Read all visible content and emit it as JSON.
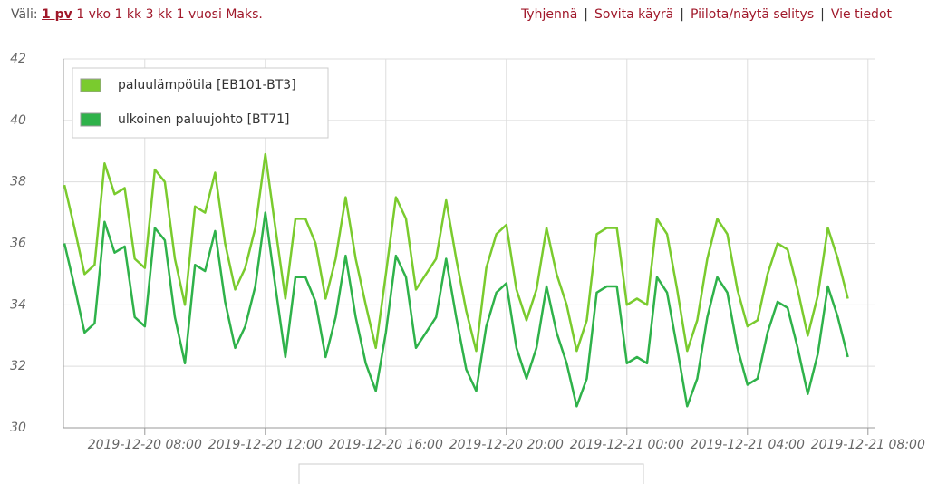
{
  "toolbar": {
    "label": "Väli:",
    "ranges": [
      "1 pv",
      "1 vko",
      "1 kk",
      "3 kk",
      "1 vuosi",
      "Maks."
    ],
    "actions": [
      "Tyhjennä",
      "Sovita käyrä",
      "Piilota/näytä selitys",
      "Vie tiedot"
    ],
    "separator": "|"
  },
  "chart_data": {
    "type": "line",
    "grid": true,
    "legend": "top-left",
    "xlim": [
      "2019-12-20 05:18",
      "2019-12-21 08:13"
    ],
    "xticks": [
      "2019-12-20 08:00",
      "2019-12-20 12:00",
      "2019-12-20 16:00",
      "2019-12-20 20:00",
      "2019-12-21 00:00",
      "2019-12-21 04:00",
      "2019-12-21 08:00"
    ],
    "ylim": [
      30,
      42
    ],
    "yticks": [
      30,
      32,
      34,
      36,
      38,
      40,
      42
    ],
    "x": [
      "2019-12-20 05:20",
      "2019-12-20 05:40",
      "2019-12-20 06:00",
      "2019-12-20 06:20",
      "2019-12-20 06:40",
      "2019-12-20 07:00",
      "2019-12-20 07:20",
      "2019-12-20 07:40",
      "2019-12-20 08:00",
      "2019-12-20 08:20",
      "2019-12-20 08:40",
      "2019-12-20 09:00",
      "2019-12-20 09:20",
      "2019-12-20 09:40",
      "2019-12-20 10:00",
      "2019-12-20 10:20",
      "2019-12-20 10:40",
      "2019-12-20 11:00",
      "2019-12-20 11:20",
      "2019-12-20 11:40",
      "2019-12-20 12:00",
      "2019-12-20 12:20",
      "2019-12-20 12:40",
      "2019-12-20 13:00",
      "2019-12-20 13:20",
      "2019-12-20 13:40",
      "2019-12-20 14:00",
      "2019-12-20 14:20",
      "2019-12-20 14:40",
      "2019-12-20 15:00",
      "2019-12-20 15:20",
      "2019-12-20 15:40",
      "2019-12-20 16:00",
      "2019-12-20 16:20",
      "2019-12-20 16:40",
      "2019-12-20 17:00",
      "2019-12-20 17:20",
      "2019-12-20 17:40",
      "2019-12-20 18:00",
      "2019-12-20 18:20",
      "2019-12-20 18:40",
      "2019-12-20 19:00",
      "2019-12-20 19:20",
      "2019-12-20 19:40",
      "2019-12-20 20:00",
      "2019-12-20 20:20",
      "2019-12-20 20:40",
      "2019-12-20 21:00",
      "2019-12-20 21:20",
      "2019-12-20 21:40",
      "2019-12-20 22:00",
      "2019-12-20 22:20",
      "2019-12-20 22:40",
      "2019-12-20 23:00",
      "2019-12-20 23:20",
      "2019-12-20 23:40",
      "2019-12-21 00:00",
      "2019-12-21 00:20",
      "2019-12-21 00:40",
      "2019-12-21 01:00",
      "2019-12-21 01:20",
      "2019-12-21 01:40",
      "2019-12-21 02:00",
      "2019-12-21 02:20",
      "2019-12-21 02:40",
      "2019-12-21 03:00",
      "2019-12-21 03:20",
      "2019-12-21 03:40",
      "2019-12-21 04:00",
      "2019-12-21 04:20",
      "2019-12-21 04:40",
      "2019-12-21 05:00",
      "2019-12-21 05:20",
      "2019-12-21 05:40",
      "2019-12-21 06:00",
      "2019-12-21 06:20",
      "2019-12-21 06:40",
      "2019-12-21 07:00",
      "2019-12-21 07:20"
    ],
    "series": [
      {
        "name": "paluulämpötila [EB101-BT3]",
        "color": "#7acb2e",
        "values": [
          37.9,
          36.5,
          35.0,
          35.3,
          38.6,
          37.6,
          37.8,
          35.5,
          35.2,
          38.4,
          38.0,
          35.5,
          34.0,
          37.2,
          37.0,
          38.3,
          36.0,
          34.5,
          35.2,
          36.5,
          38.9,
          36.5,
          34.2,
          36.8,
          36.8,
          36.0,
          34.2,
          35.5,
          37.5,
          35.5,
          34.0,
          32.6,
          35.0,
          37.5,
          36.8,
          34.5,
          35.0,
          35.5,
          37.4,
          35.5,
          33.8,
          32.5,
          35.2,
          36.3,
          36.6,
          34.5,
          33.5,
          34.5,
          36.5,
          35.0,
          34.0,
          32.5,
          33.5,
          36.3,
          36.5,
          36.5,
          34.0,
          34.2,
          34.0,
          36.8,
          36.3,
          34.5,
          32.5,
          33.5,
          35.5,
          36.8,
          36.3,
          34.5,
          33.3,
          33.5,
          35.0,
          36.0,
          35.8,
          34.5,
          33.0,
          34.3,
          36.5,
          35.5,
          34.2
        ]
      },
      {
        "name": "ulkoinen paluujohto [BT71]",
        "color": "#2fb24a",
        "values": [
          36.0,
          34.6,
          33.1,
          33.4,
          36.7,
          35.7,
          35.9,
          33.6,
          33.3,
          36.5,
          36.1,
          33.6,
          32.1,
          35.3,
          35.1,
          36.4,
          34.1,
          32.6,
          33.3,
          34.6,
          37.0,
          34.6,
          32.3,
          34.9,
          34.9,
          34.1,
          32.3,
          33.6,
          35.6,
          33.6,
          32.1,
          31.2,
          33.1,
          35.6,
          34.9,
          32.6,
          33.1,
          33.6,
          35.5,
          33.6,
          31.9,
          31.2,
          33.3,
          34.4,
          34.7,
          32.6,
          31.6,
          32.6,
          34.6,
          33.1,
          32.1,
          30.7,
          31.6,
          34.4,
          34.6,
          34.6,
          32.1,
          32.3,
          32.1,
          34.9,
          34.4,
          32.6,
          30.7,
          31.6,
          33.6,
          34.9,
          34.4,
          32.6,
          31.4,
          31.6,
          33.1,
          34.1,
          33.9,
          32.6,
          31.1,
          32.4,
          34.6,
          33.6,
          32.3
        ]
      }
    ]
  }
}
